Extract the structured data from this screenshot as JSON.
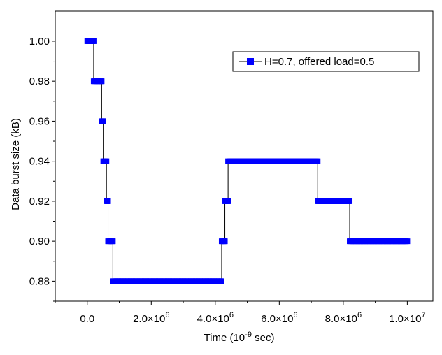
{
  "chart_data": {
    "type": "line",
    "xlabel": "Time (10",
    "xlabel_exponent": "-9",
    "xlabel_suffix": " sec)",
    "ylabel": "Data burst size (kB)",
    "xlim": [
      -1000000,
      10800000
    ],
    "ylim": [
      0.87,
      1.015
    ],
    "grid": false,
    "legend_position": "top-right",
    "x_ticks": [
      0,
      2000000,
      4000000,
      6000000,
      8000000,
      10000000
    ],
    "x_tick_labels": [
      {
        "mantissa": "0.0",
        "exponent": ""
      },
      {
        "mantissa": "2.0×10",
        "exponent": "6"
      },
      {
        "mantissa": "4.0×10",
        "exponent": "6"
      },
      {
        "mantissa": "6.0×10",
        "exponent": "6"
      },
      {
        "mantissa": "8.0×10",
        "exponent": "6"
      },
      {
        "mantissa": "1.0×10",
        "exponent": "7"
      }
    ],
    "y_ticks": [
      0.88,
      0.9,
      0.92,
      0.94,
      0.96,
      0.98,
      1.0
    ],
    "y_tick_labels": [
      "0.88",
      "0.90",
      "0.92",
      "0.94",
      "0.96",
      "0.98",
      "1.00"
    ],
    "colors": {
      "series": "#0000ff",
      "line": "#000000"
    },
    "series": [
      {
        "name": "H=0.7, offered load=0.5",
        "segments": [
          {
            "x_start": 0,
            "x_end": 200000,
            "y": 1.0
          },
          {
            "x_start": 200000,
            "x_end": 450000,
            "y": 0.98
          },
          {
            "x_start": 450000,
            "x_end": 500000,
            "y": 0.96
          },
          {
            "x_start": 500000,
            "x_end": 600000,
            "y": 0.94
          },
          {
            "x_start": 600000,
            "x_end": 650000,
            "y": 0.92
          },
          {
            "x_start": 650000,
            "x_end": 800000,
            "y": 0.9
          },
          {
            "x_start": 800000,
            "x_end": 4200000,
            "y": 0.88
          },
          {
            "x_start": 4200000,
            "x_end": 4300000,
            "y": 0.9
          },
          {
            "x_start": 4300000,
            "x_end": 4400000,
            "y": 0.92
          },
          {
            "x_start": 4400000,
            "x_end": 7200000,
            "y": 0.94
          },
          {
            "x_start": 7200000,
            "x_end": 8200000,
            "y": 0.92
          },
          {
            "x_start": 8200000,
            "x_end": 10000000,
            "y": 0.9
          }
        ]
      }
    ]
  }
}
